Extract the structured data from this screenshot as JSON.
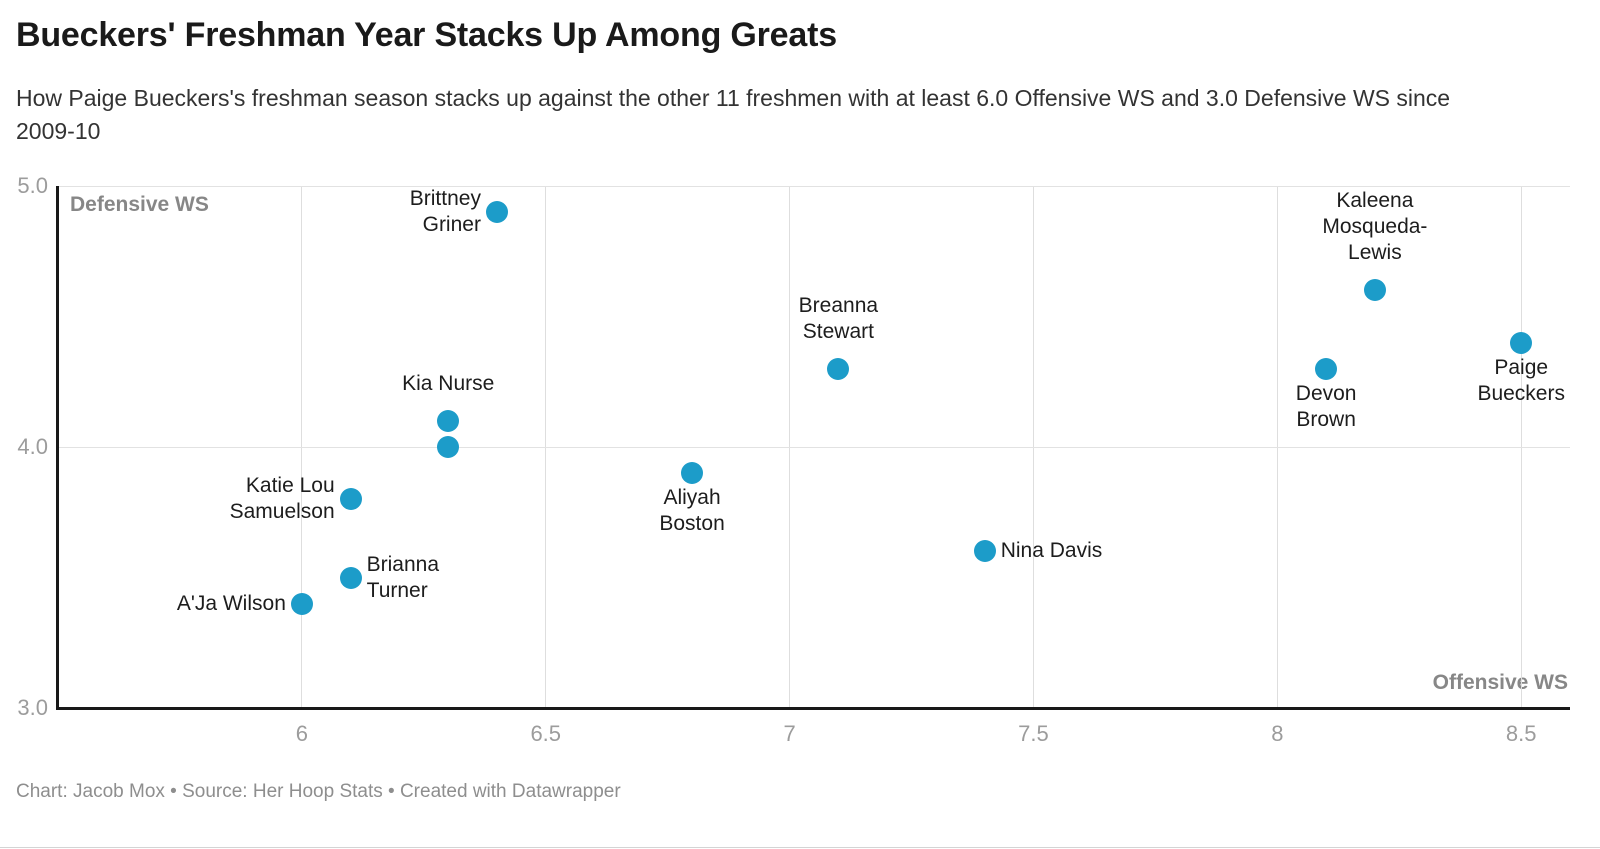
{
  "header": {
    "title": "Bueckers' Freshman Year Stacks Up Among Greats",
    "subtitle": "How Paige Bueckers's freshman season stacks up against the other 11 freshmen with at least 6.0 Offensive WS and 3.0 Defensive WS since 2009-10"
  },
  "footer": {
    "text": "Chart: Jacob Mox • Source: Her Hoop Stats • Created with Datawrapper"
  },
  "chart_data": {
    "type": "scatter",
    "title": "Bueckers' Freshman Year Stacks Up Among Greats",
    "xlabel": "Offensive WS",
    "ylabel": "Defensive WS",
    "xlim": [
      5.5,
      8.6
    ],
    "ylim": [
      3.0,
      5.0
    ],
    "x_tick_values": [
      6,
      6.5,
      7,
      7.5,
      8,
      8.5
    ],
    "x_tick_labels": [
      "6",
      "6.5",
      "7",
      "7.5",
      "8",
      "8.5"
    ],
    "y_tick_values": [
      5.0,
      4.0,
      3.0
    ],
    "y_tick_labels": [
      "5.0",
      "4.0",
      "3.0"
    ],
    "grid": "on",
    "legend": "none",
    "point_color": "#1C9CC9",
    "points": [
      {
        "name": "Brittney Griner",
        "x": 6.4,
        "y": 4.9,
        "label_lines": [
          "Brittney",
          "Griner"
        ],
        "label_pos": "left"
      },
      {
        "name": "Kaleena Mosqueda-Lewis",
        "x": 8.2,
        "y": 4.6,
        "label_lines": [
          "Kaleena",
          "Mosqueda-",
          "Lewis"
        ],
        "label_pos": "above"
      },
      {
        "name": "Paige Bueckers",
        "x": 8.5,
        "y": 4.4,
        "label_lines": [
          "Paige",
          "Bueckers"
        ],
        "label_pos": "below"
      },
      {
        "name": "Breanna Stewart",
        "x": 7.1,
        "y": 4.3,
        "label_lines": [
          "Breanna",
          "Stewart"
        ],
        "label_pos": "above"
      },
      {
        "name": "Devon Brown",
        "x": 8.1,
        "y": 4.3,
        "label_lines": [
          "Devon",
          "Brown"
        ],
        "label_pos": "below"
      },
      {
        "name": "Kia Nurse",
        "x": 6.3,
        "y": 4.1,
        "label_lines": [
          "Kia Nurse"
        ],
        "label_pos": "above"
      },
      {
        "name": "",
        "x": 6.3,
        "y": 4.0,
        "label_lines": [],
        "label_pos": "none"
      },
      {
        "name": "Aliyah Boston",
        "x": 6.8,
        "y": 3.9,
        "label_lines": [
          "Aliyah",
          "Boston"
        ],
        "label_pos": "below"
      },
      {
        "name": "Katie Lou Samuelson",
        "x": 6.1,
        "y": 3.8,
        "label_lines": [
          "Katie Lou",
          "Samuelson"
        ],
        "label_pos": "left"
      },
      {
        "name": "Nina Davis",
        "x": 7.4,
        "y": 3.6,
        "label_lines": [
          "Nina Davis"
        ],
        "label_pos": "right"
      },
      {
        "name": "Brianna Turner",
        "x": 6.1,
        "y": 3.5,
        "label_lines": [
          "Brianna",
          "Turner"
        ],
        "label_pos": "right"
      },
      {
        "name": "A'Ja Wilson",
        "x": 6.0,
        "y": 3.4,
        "label_lines": [
          "A'Ja Wilson"
        ],
        "label_pos": "left"
      }
    ]
  }
}
